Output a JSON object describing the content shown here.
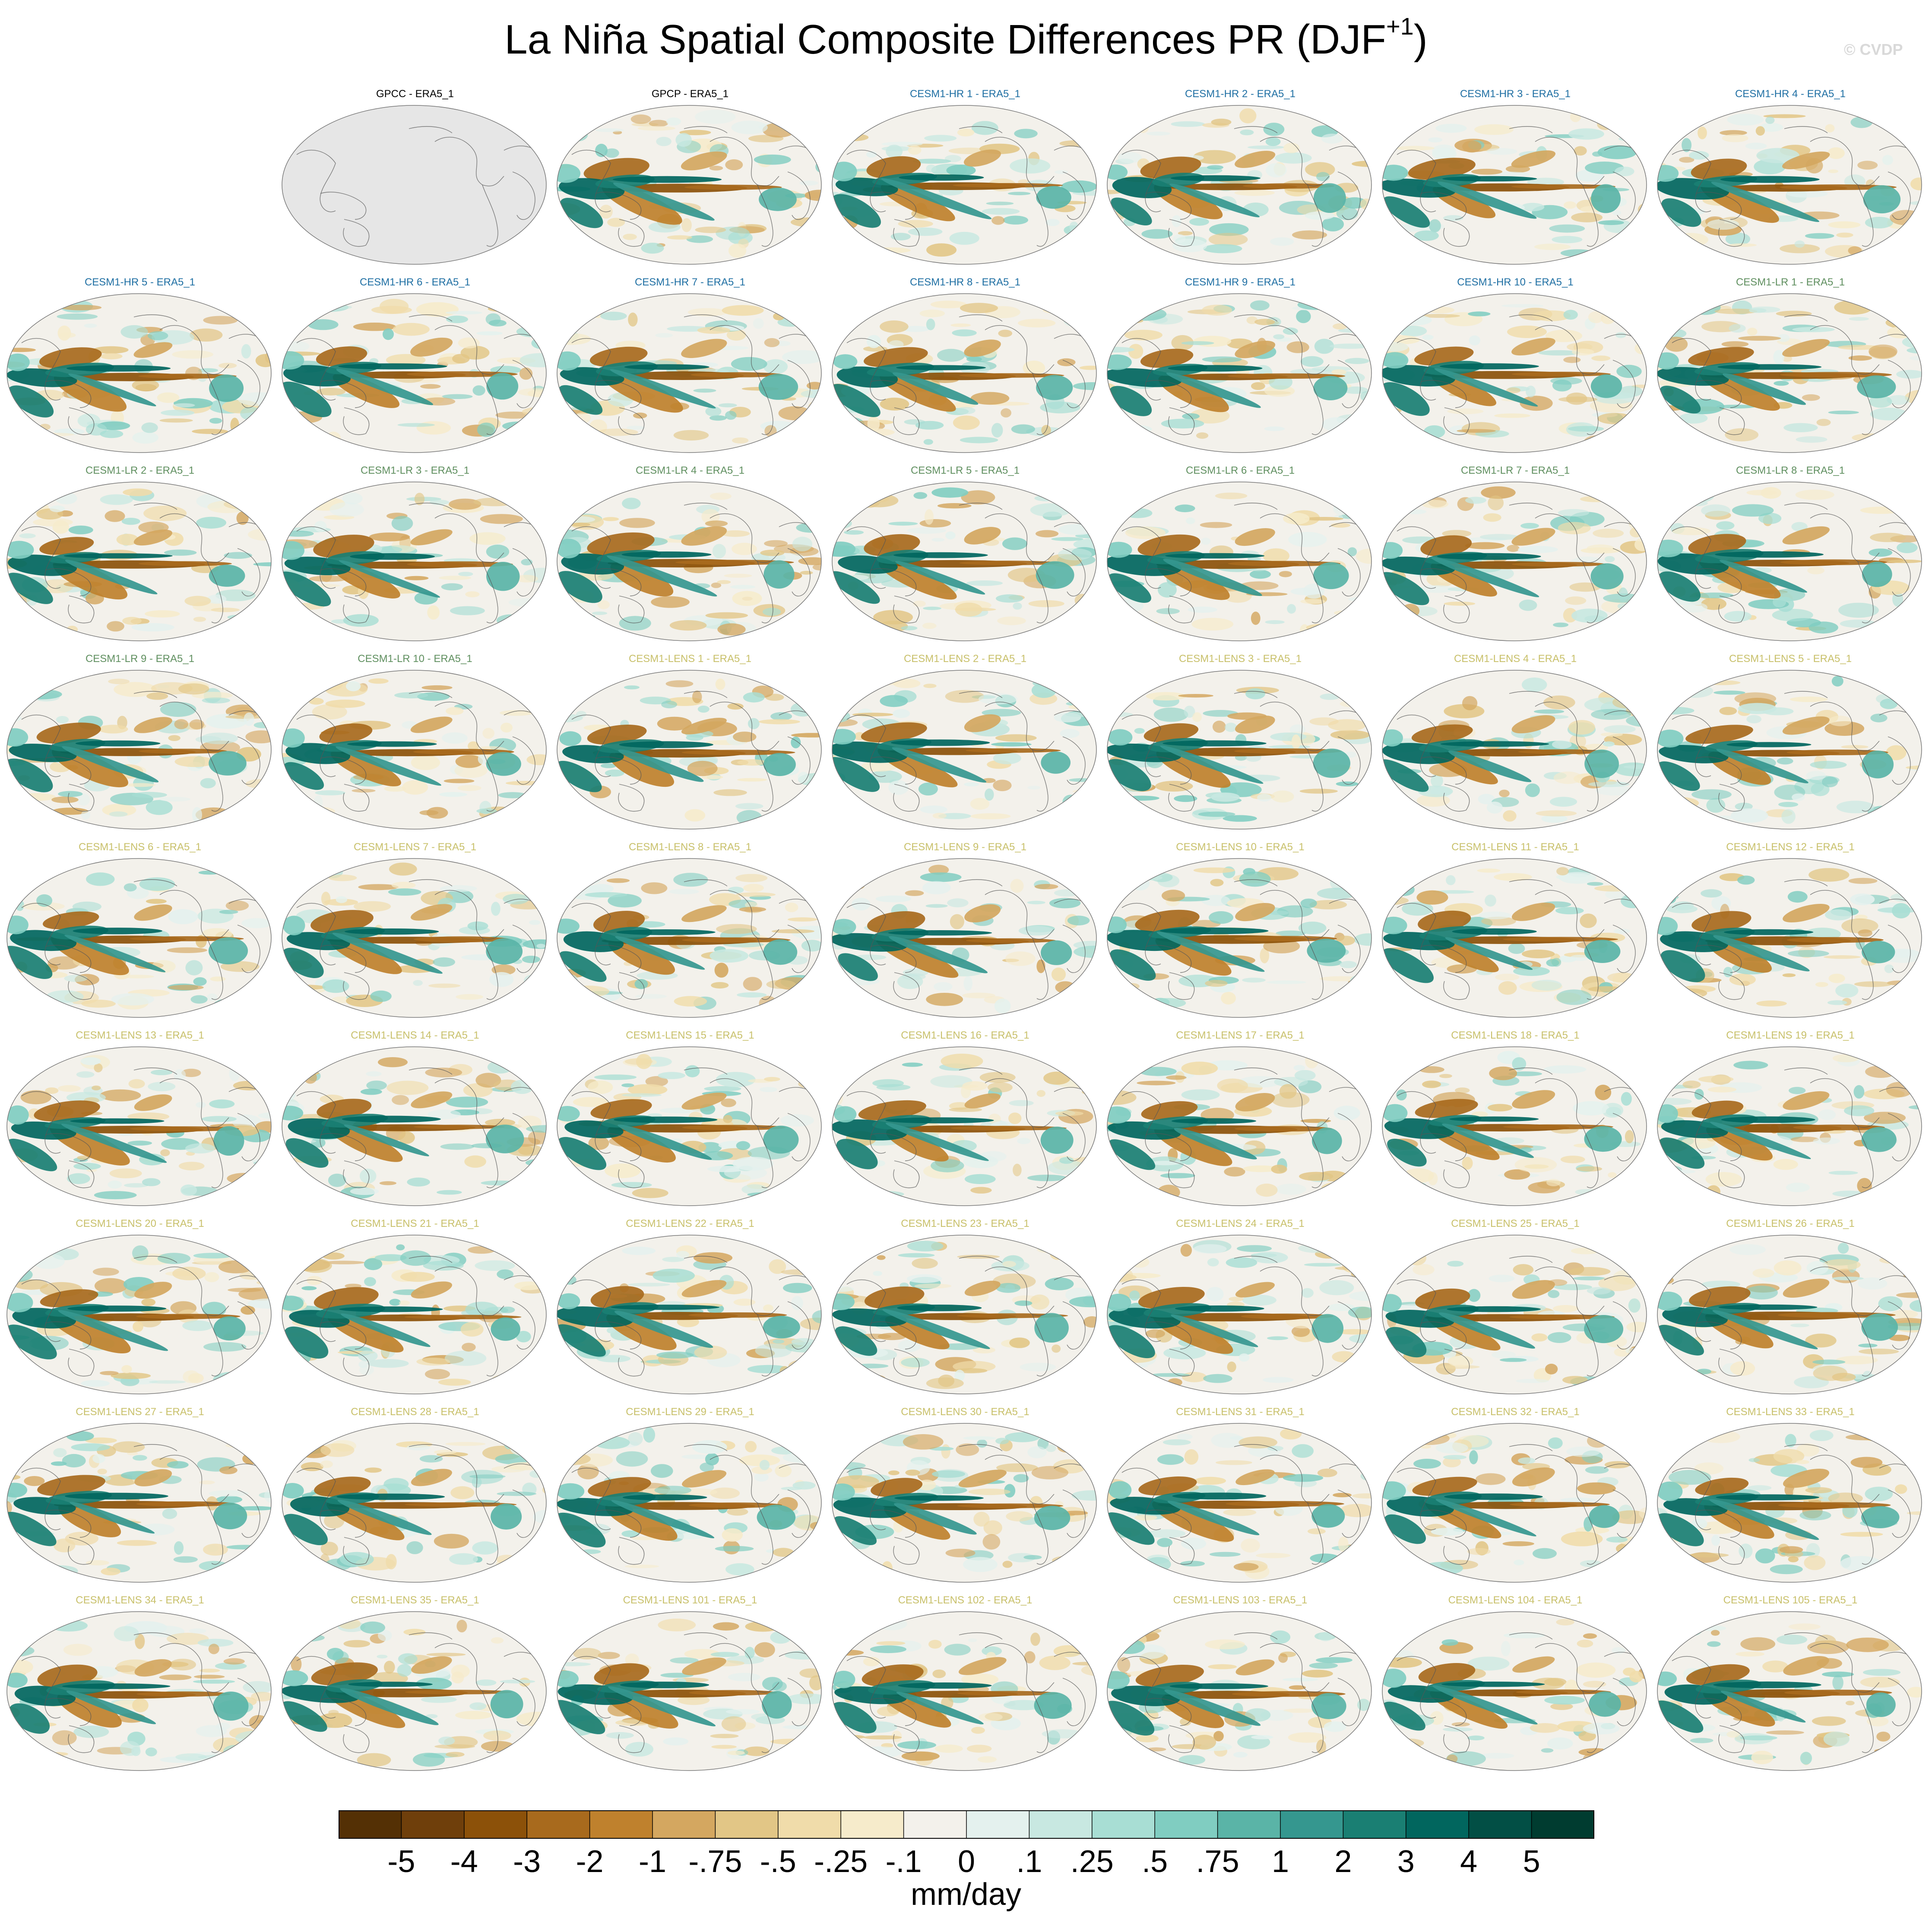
{
  "figure": {
    "title_main": "La Niña Spatial Composite Differences PR (DJF",
    "title_sup": "+1",
    "title_close": ")",
    "watermark": "© CVDP",
    "units": "mm/day"
  },
  "colors": {
    "observations": "#000000",
    "CESM1-HR": "#1f6fa3",
    "CESM1-LR": "#5f8f5f",
    "CESM1-LENS": "#c8c06a",
    "missing_fill": "#e6e6e6",
    "coast": "#555555",
    "outline": "#777777"
  },
  "chart_data": {
    "type": "heatmap",
    "variable": "PR",
    "season": "DJF+1",
    "composite": "La Niña",
    "reference": "ERA5_1",
    "projection": "Robinson",
    "colorbar": {
      "levels": [
        "-5",
        "-4",
        "-3",
        "-2",
        "-1",
        "-.75",
        "-.5",
        "-.25",
        "-.1",
        "0",
        ".1",
        ".25",
        ".5",
        ".75",
        "1",
        "2",
        "3",
        "4",
        "5"
      ],
      "colors": [
        "#543005",
        "#6f3f0b",
        "#8c5109",
        "#a86a1d",
        "#bf812d",
        "#d4a760",
        "#e2c686",
        "#f0dcaa",
        "#f6ebcb",
        "#f3f1eb",
        "#e4f1ee",
        "#c8e8e1",
        "#a8ded4",
        "#80cdc1",
        "#5ab4a7",
        "#35978f",
        "#1a7f73",
        "#01665e",
        "#024f45",
        "#003c30"
      ],
      "units": "mm/day"
    },
    "panels": [
      {
        "label": "GPCC - ERA5_1",
        "group": "observations",
        "row": 0,
        "col": 1,
        "missing": true
      },
      {
        "label": "GPCP - ERA5_1",
        "group": "observations",
        "row": 0,
        "col": 2,
        "missing": false
      },
      {
        "label": "CESM1-HR 1 - ERA5_1",
        "group": "CESM1-HR",
        "row": 0,
        "col": 3
      },
      {
        "label": "CESM1-HR 2 - ERA5_1",
        "group": "CESM1-HR",
        "row": 0,
        "col": 4
      },
      {
        "label": "CESM1-HR 3 - ERA5_1",
        "group": "CESM1-HR",
        "row": 0,
        "col": 5
      },
      {
        "label": "CESM1-HR 4 - ERA5_1",
        "group": "CESM1-HR",
        "row": 0,
        "col": 6
      },
      {
        "label": "CESM1-HR 5 - ERA5_1",
        "group": "CESM1-HR",
        "row": 1,
        "col": 0
      },
      {
        "label": "CESM1-HR 6 - ERA5_1",
        "group": "CESM1-HR",
        "row": 1,
        "col": 1
      },
      {
        "label": "CESM1-HR 7 - ERA5_1",
        "group": "CESM1-HR",
        "row": 1,
        "col": 2
      },
      {
        "label": "CESM1-HR 8 - ERA5_1",
        "group": "CESM1-HR",
        "row": 1,
        "col": 3
      },
      {
        "label": "CESM1-HR 9 - ERA5_1",
        "group": "CESM1-HR",
        "row": 1,
        "col": 4
      },
      {
        "label": "CESM1-HR 10 - ERA5_1",
        "group": "CESM1-HR",
        "row": 1,
        "col": 5
      },
      {
        "label": "CESM1-LR 1 - ERA5_1",
        "group": "CESM1-LR",
        "row": 1,
        "col": 6
      },
      {
        "label": "CESM1-LR 2 - ERA5_1",
        "group": "CESM1-LR",
        "row": 2,
        "col": 0
      },
      {
        "label": "CESM1-LR 3 - ERA5_1",
        "group": "CESM1-LR",
        "row": 2,
        "col": 1
      },
      {
        "label": "CESM1-LR 4 - ERA5_1",
        "group": "CESM1-LR",
        "row": 2,
        "col": 2
      },
      {
        "label": "CESM1-LR 5 - ERA5_1",
        "group": "CESM1-LR",
        "row": 2,
        "col": 3
      },
      {
        "label": "CESM1-LR 6 - ERA5_1",
        "group": "CESM1-LR",
        "row": 2,
        "col": 4
      },
      {
        "label": "CESM1-LR 7 - ERA5_1",
        "group": "CESM1-LR",
        "row": 2,
        "col": 5
      },
      {
        "label": "CESM1-LR 8 - ERA5_1",
        "group": "CESM1-LR",
        "row": 2,
        "col": 6
      },
      {
        "label": "CESM1-LR 9 - ERA5_1",
        "group": "CESM1-LR",
        "row": 3,
        "col": 0
      },
      {
        "label": "CESM1-LR 10 - ERA5_1",
        "group": "CESM1-LR",
        "row": 3,
        "col": 1
      },
      {
        "label": "CESM1-LENS 1 - ERA5_1",
        "group": "CESM1-LENS",
        "row": 3,
        "col": 2
      },
      {
        "label": "CESM1-LENS 2 - ERA5_1",
        "group": "CESM1-LENS",
        "row": 3,
        "col": 3
      },
      {
        "label": "CESM1-LENS 3 - ERA5_1",
        "group": "CESM1-LENS",
        "row": 3,
        "col": 4
      },
      {
        "label": "CESM1-LENS 4 - ERA5_1",
        "group": "CESM1-LENS",
        "row": 3,
        "col": 5
      },
      {
        "label": "CESM1-LENS 5 - ERA5_1",
        "group": "CESM1-LENS",
        "row": 3,
        "col": 6
      },
      {
        "label": "CESM1-LENS 6 - ERA5_1",
        "group": "CESM1-LENS",
        "row": 4,
        "col": 0
      },
      {
        "label": "CESM1-LENS 7 - ERA5_1",
        "group": "CESM1-LENS",
        "row": 4,
        "col": 1
      },
      {
        "label": "CESM1-LENS 8 - ERA5_1",
        "group": "CESM1-LENS",
        "row": 4,
        "col": 2
      },
      {
        "label": "CESM1-LENS 9 - ERA5_1",
        "group": "CESM1-LENS",
        "row": 4,
        "col": 3
      },
      {
        "label": "CESM1-LENS 10 - ERA5_1",
        "group": "CESM1-LENS",
        "row": 4,
        "col": 4
      },
      {
        "label": "CESM1-LENS 11 - ERA5_1",
        "group": "CESM1-LENS",
        "row": 4,
        "col": 5
      },
      {
        "label": "CESM1-LENS 12 - ERA5_1",
        "group": "CESM1-LENS",
        "row": 4,
        "col": 6
      },
      {
        "label": "CESM1-LENS 13 - ERA5_1",
        "group": "CESM1-LENS",
        "row": 5,
        "col": 0
      },
      {
        "label": "CESM1-LENS 14 - ERA5_1",
        "group": "CESM1-LENS",
        "row": 5,
        "col": 1
      },
      {
        "label": "CESM1-LENS 15 - ERA5_1",
        "group": "CESM1-LENS",
        "row": 5,
        "col": 2
      },
      {
        "label": "CESM1-LENS 16 - ERA5_1",
        "group": "CESM1-LENS",
        "row": 5,
        "col": 3
      },
      {
        "label": "CESM1-LENS 17 - ERA5_1",
        "group": "CESM1-LENS",
        "row": 5,
        "col": 4
      },
      {
        "label": "CESM1-LENS 18 - ERA5_1",
        "group": "CESM1-LENS",
        "row": 5,
        "col": 5
      },
      {
        "label": "CESM1-LENS 19 - ERA5_1",
        "group": "CESM1-LENS",
        "row": 5,
        "col": 6
      },
      {
        "label": "CESM1-LENS 20 - ERA5_1",
        "group": "CESM1-LENS",
        "row": 6,
        "col": 0
      },
      {
        "label": "CESM1-LENS 21 - ERA5_1",
        "group": "CESM1-LENS",
        "row": 6,
        "col": 1
      },
      {
        "label": "CESM1-LENS 22 - ERA5_1",
        "group": "CESM1-LENS",
        "row": 6,
        "col": 2
      },
      {
        "label": "CESM1-LENS 23 - ERA5_1",
        "group": "CESM1-LENS",
        "row": 6,
        "col": 3
      },
      {
        "label": "CESM1-LENS 24 - ERA5_1",
        "group": "CESM1-LENS",
        "row": 6,
        "col": 4
      },
      {
        "label": "CESM1-LENS 25 - ERA5_1",
        "group": "CESM1-LENS",
        "row": 6,
        "col": 5
      },
      {
        "label": "CESM1-LENS 26 - ERA5_1",
        "group": "CESM1-LENS",
        "row": 6,
        "col": 6
      },
      {
        "label": "CESM1-LENS 27 - ERA5_1",
        "group": "CESM1-LENS",
        "row": 7,
        "col": 0
      },
      {
        "label": "CESM1-LENS 28 - ERA5_1",
        "group": "CESM1-LENS",
        "row": 7,
        "col": 1
      },
      {
        "label": "CESM1-LENS 29 - ERA5_1",
        "group": "CESM1-LENS",
        "row": 7,
        "col": 2
      },
      {
        "label": "CESM1-LENS 30 - ERA5_1",
        "group": "CESM1-LENS",
        "row": 7,
        "col": 3
      },
      {
        "label": "CESM1-LENS 31 - ERA5_1",
        "group": "CESM1-LENS",
        "row": 7,
        "col": 4
      },
      {
        "label": "CESM1-LENS 32 - ERA5_1",
        "group": "CESM1-LENS",
        "row": 7,
        "col": 5
      },
      {
        "label": "CESM1-LENS 33 - ERA5_1",
        "group": "CESM1-LENS",
        "row": 7,
        "col": 6
      },
      {
        "label": "CESM1-LENS 34 - ERA5_1",
        "group": "CESM1-LENS",
        "row": 8,
        "col": 0
      },
      {
        "label": "CESM1-LENS 35 - ERA5_1",
        "group": "CESM1-LENS",
        "row": 8,
        "col": 1
      },
      {
        "label": "CESM1-LENS 101 - ERA5_1",
        "group": "CESM1-LENS",
        "row": 8,
        "col": 2
      },
      {
        "label": "CESM1-LENS 102 - ERA5_1",
        "group": "CESM1-LENS",
        "row": 8,
        "col": 3
      },
      {
        "label": "CESM1-LENS 103 - ERA5_1",
        "group": "CESM1-LENS",
        "row": 8,
        "col": 4
      },
      {
        "label": "CESM1-LENS 104 - ERA5_1",
        "group": "CESM1-LENS",
        "row": 8,
        "col": 5
      },
      {
        "label": "CESM1-LENS 105 - ERA5_1",
        "group": "CESM1-LENS",
        "row": 8,
        "col": 6
      }
    ]
  }
}
